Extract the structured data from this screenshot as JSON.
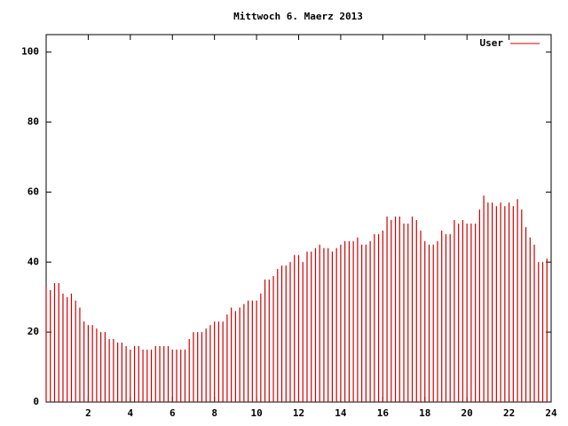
{
  "chart_data": {
    "type": "impulse",
    "title": "Mittwoch 6. Maerz 2013",
    "x": [
      0,
      0.2,
      0.4,
      0.6,
      0.8,
      1,
      1.2,
      1.4,
      1.6,
      1.8,
      2,
      2.2,
      2.4,
      2.6,
      2.8,
      3,
      3.2,
      3.4,
      3.6,
      3.8,
      4,
      4.2,
      4.4,
      4.6,
      4.8,
      5,
      5.2,
      5.4,
      5.6,
      5.8,
      6,
      6.2,
      6.4,
      6.6,
      6.8,
      7,
      7.2,
      7.4,
      7.6,
      7.8,
      8,
      8.2,
      8.4,
      8.6,
      8.8,
      9,
      9.2,
      9.4,
      9.6,
      9.8,
      10,
      10.2,
      10.4,
      10.6,
      10.8,
      11,
      11.2,
      11.4,
      11.6,
      11.8,
      12,
      12.2,
      12.4,
      12.6,
      12.8,
      13,
      13.2,
      13.4,
      13.6,
      13.8,
      14,
      14.2,
      14.4,
      14.6,
      14.8,
      15,
      15.2,
      15.4,
      15.6,
      15.8,
      16,
      16.2,
      16.4,
      16.6,
      16.8,
      17,
      17.2,
      17.4,
      17.6,
      17.8,
      18,
      18.2,
      18.4,
      18.6,
      18.8,
      19,
      19.2,
      19.4,
      19.6,
      19.8,
      20,
      20.2,
      20.4,
      20.6,
      20.8,
      21,
      21.2,
      21.4,
      21.6,
      21.8,
      22,
      22.2,
      22.4,
      22.6,
      22.8,
      23,
      23.2,
      23.4,
      23.6,
      23.8
    ],
    "series": [
      {
        "name": "User",
        "color": "#cc0000",
        "values": [
          33,
          32,
          34,
          34,
          31,
          30,
          31,
          29,
          27,
          23,
          22,
          22,
          21,
          20,
          20,
          18,
          18,
          17,
          17,
          16,
          15,
          16,
          16,
          15,
          15,
          15,
          16,
          16,
          16,
          16,
          15,
          15,
          15,
          15,
          18,
          20,
          20,
          20,
          21,
          22,
          23,
          23,
          23,
          25,
          27,
          26,
          27,
          28,
          29,
          29,
          29,
          31,
          35,
          35,
          36,
          38,
          39,
          39,
          40,
          42,
          42,
          40,
          43,
          43,
          44,
          45,
          44,
          44,
          43,
          44,
          45,
          46,
          46,
          46,
          47,
          45,
          45,
          46,
          48,
          48,
          49,
          53,
          52,
          53,
          53,
          51,
          51,
          53,
          52,
          49,
          46,
          45,
          45,
          46,
          49,
          48,
          48,
          52,
          51,
          52,
          51,
          51,
          51,
          55,
          59,
          57,
          57,
          56,
          57,
          56,
          57,
          56,
          58,
          55,
          50,
          47,
          45,
          40,
          40,
          41
        ]
      }
    ],
    "xlim": [
      0,
      24
    ],
    "xticks": [
      2,
      4,
      6,
      8,
      10,
      12,
      14,
      16,
      18,
      20,
      22,
      24
    ],
    "ylim": [
      0,
      105
    ],
    "yticks": [
      0,
      20,
      40,
      60,
      80,
      100
    ],
    "legend": "top-right"
  }
}
